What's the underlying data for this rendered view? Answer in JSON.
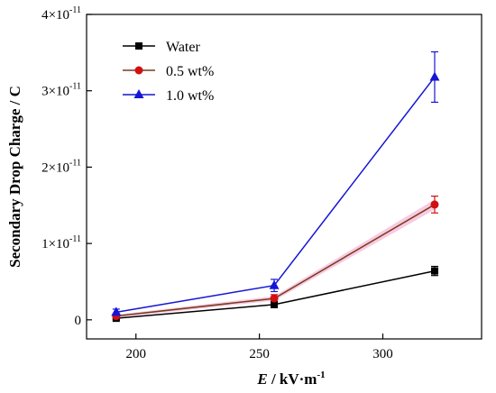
{
  "chart_data": {
    "type": "line",
    "xlabel": {
      "italic": "E",
      "rest": " / kV·m",
      "sup": "-1"
    },
    "ylabel": "Secondary Drop Charge / C",
    "xlim": [
      180,
      340
    ],
    "ylim": [
      -2.5e-12,
      4e-11
    ],
    "x_ticks": [
      200,
      250,
      300
    ],
    "x_tick_labels": [
      "200",
      "250",
      "300"
    ],
    "y_ticks": [
      0,
      1e-11,
      2e-11,
      3e-11,
      4e-11
    ],
    "y_tick_labels": [
      {
        "base": "0",
        "sup": ""
      },
      {
        "base": "1×10",
        "sup": "-11"
      },
      {
        "base": "2×10",
        "sup": "-11"
      },
      {
        "base": "3×10",
        "sup": "-11"
      },
      {
        "base": "4×10",
        "sup": "-11"
      }
    ],
    "grid": false,
    "legend": "top-left",
    "series": [
      {
        "name": "Water",
        "color": "#000000",
        "marker": "square",
        "x": [
          192,
          256,
          321
        ],
        "y": [
          2e-13,
          2e-12,
          6.4e-12
        ],
        "err": [
          2e-13,
          4e-13,
          6e-13
        ],
        "band": false
      },
      {
        "name": "0.5 wt%",
        "color": "#d11010",
        "line_color": "#7a3a1a",
        "marker": "circle",
        "x": [
          192,
          256,
          321
        ],
        "y": [
          5e-13,
          2.8e-12,
          1.51e-11
        ],
        "err": [
          3e-13,
          5e-13,
          1.1e-12
        ],
        "band": true,
        "band_color": "#f4b8d8"
      },
      {
        "name": "1.0 wt%",
        "color": "#1515d6",
        "marker": "triangle",
        "x": [
          192,
          256,
          321
        ],
        "y": [
          1e-12,
          4.5e-12,
          3.18e-11
        ],
        "err": [
          4e-13,
          8e-13,
          3.3e-12
        ],
        "band": false
      }
    ]
  }
}
